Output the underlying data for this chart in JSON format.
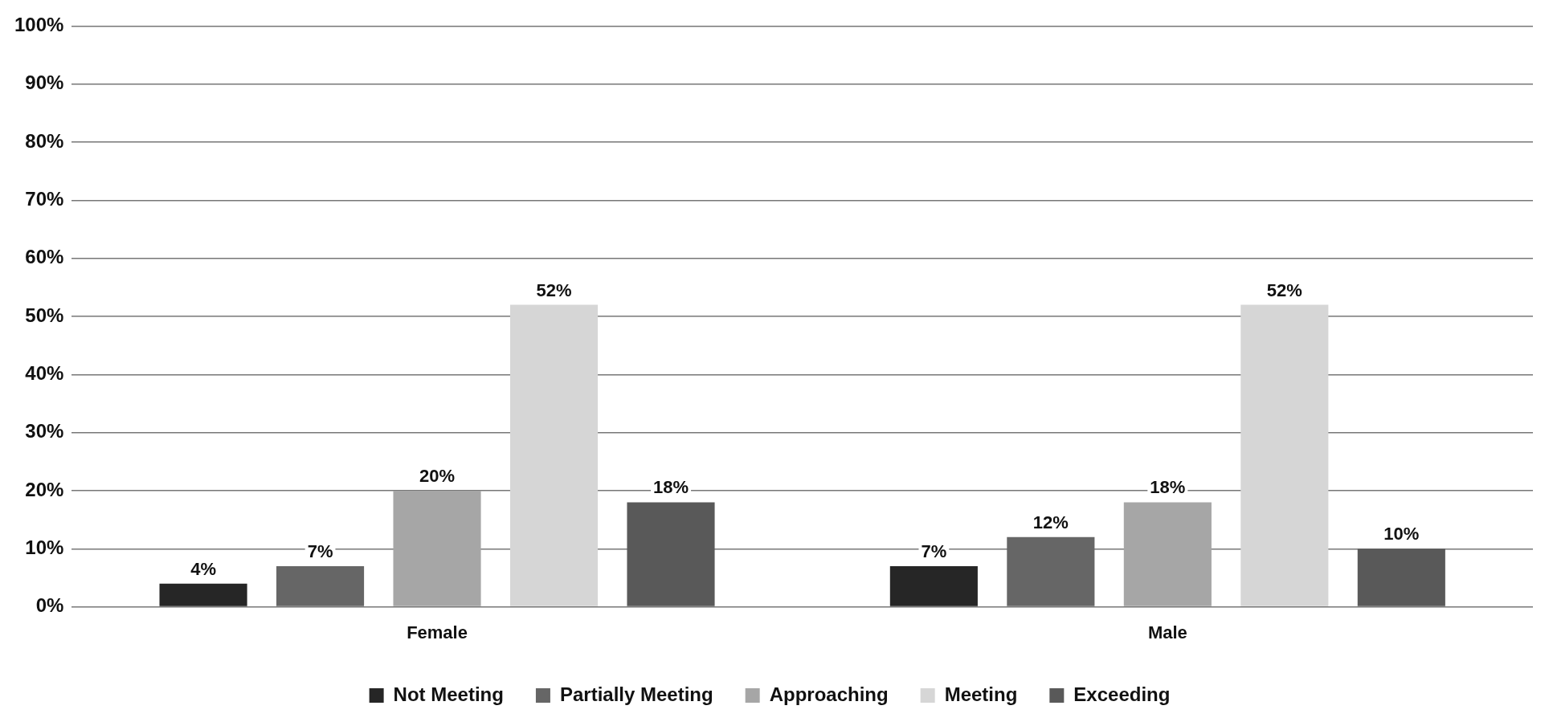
{
  "chart_data": {
    "type": "bar",
    "categories": [
      "Female",
      "Male"
    ],
    "series": [
      {
        "name": "Not Meeting",
        "color": "#262626",
        "values": [
          4,
          7
        ]
      },
      {
        "name": "Partially Meeting",
        "color": "#666666",
        "values": [
          7,
          12
        ]
      },
      {
        "name": "Approaching",
        "color": "#a6a6a6",
        "values": [
          20,
          18
        ]
      },
      {
        "name": "Meeting",
        "color": "#d6d6d6",
        "values": [
          52,
          52
        ]
      },
      {
        "name": "Exceeding",
        "color": "#595959",
        "values": [
          18,
          10
        ]
      }
    ],
    "ylim": [
      0,
      100
    ],
    "yticks": [
      {
        "value": 0,
        "label": "0%"
      },
      {
        "value": 10,
        "label": "10%"
      },
      {
        "value": 20,
        "label": "20%"
      },
      {
        "value": 30,
        "label": "30%"
      },
      {
        "value": 40,
        "label": "40%"
      },
      {
        "value": 50,
        "label": "50%"
      },
      {
        "value": 60,
        "label": "60%"
      },
      {
        "value": 70,
        "label": "70%"
      },
      {
        "value": 80,
        "label": "80%"
      },
      {
        "value": 90,
        "label": "90%"
      },
      {
        "value": 100,
        "label": "100%"
      }
    ],
    "value_labels": [
      [
        "4%",
        "7%"
      ],
      [
        "7%",
        "12%"
      ],
      [
        "20%",
        "18%"
      ],
      [
        "52%",
        "52%"
      ],
      [
        "18%",
        "10%"
      ]
    ],
    "grid": "y",
    "legend": "bottom"
  }
}
